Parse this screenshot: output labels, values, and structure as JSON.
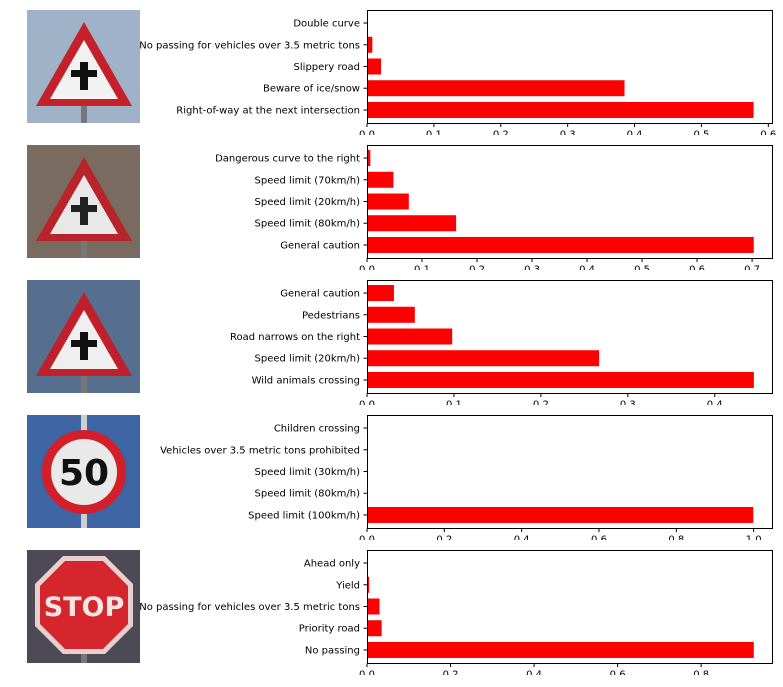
{
  "colors": {
    "bar": "#ff0000",
    "axis": "#000000"
  },
  "images": [
    {
      "sign": "warning-triangle-intersection",
      "thumb_colors": {
        "bg": "#9fb2c8",
        "border": "#c4212b",
        "inner": "#f2f2f2",
        "symbol": "#111111"
      }
    },
    {
      "sign": "warning-triangle-caution-cluster",
      "thumb_colors": {
        "bg": "#7a6b60",
        "border": "#b8242a",
        "inner": "#e8e8e8",
        "symbol": "#222222"
      }
    },
    {
      "sign": "warning-triangle-animals",
      "thumb_colors": {
        "bg": "#566f8e",
        "border": "#c0202b",
        "inner": "#efefef",
        "symbol": "#111111"
      }
    },
    {
      "sign": "speed-limit-50",
      "thumb_colors": {
        "bg": "#3d64a3",
        "border": "#d21f2a",
        "inner": "#e9e9e9",
        "symbol": "#111111"
      },
      "text": "50"
    },
    {
      "sign": "stop-octagon",
      "thumb_colors": {
        "bg": "#4e4a55",
        "border": "#e8d0d0",
        "inner": "#d5262d",
        "symbol": "#f5e6e6"
      },
      "text": "STOP"
    }
  ],
  "chart_data": [
    {
      "type": "bar",
      "orientation": "horizontal",
      "categories": [
        "Right-of-way at the next intersection",
        "Beware of ice/snow",
        "Slippery road",
        "No passing for vehicles over 3.5 metric tons",
        "Double curve"
      ],
      "values": [
        0.578,
        0.385,
        0.021,
        0.008,
        0.0008
      ],
      "xlim": [
        0,
        0.607
      ],
      "xticks": [
        0,
        0.1,
        0.2,
        0.3,
        0.4,
        0.5,
        0.6
      ],
      "xtick_labels": [
        "0.0",
        "0.1",
        "0.2",
        "0.3",
        "0.4",
        "0.5",
        "0.6"
      ],
      "grid": false
    },
    {
      "type": "bar",
      "orientation": "horizontal",
      "categories": [
        "General caution",
        "Speed limit (80km/h)",
        "Speed limit (20km/h)",
        "Speed limit (70km/h)",
        "Dangerous curve to the right"
      ],
      "values": [
        0.703,
        0.162,
        0.076,
        0.048,
        0.006
      ],
      "xlim": [
        0,
        0.738
      ],
      "xticks": [
        0,
        0.1,
        0.2,
        0.3,
        0.4,
        0.5,
        0.6,
        0.7
      ],
      "xtick_labels": [
        "0.0",
        "0.1",
        "0.2",
        "0.3",
        "0.4",
        "0.5",
        "0.6",
        "0.7"
      ],
      "grid": false
    },
    {
      "type": "bar",
      "orientation": "horizontal",
      "categories": [
        "Wild animals crossing",
        "Speed limit (20km/h)",
        "Road narrows on the right",
        "Pedestrians",
        "General caution"
      ],
      "values": [
        0.445,
        0.267,
        0.098,
        0.055,
        0.031
      ],
      "xlim": [
        0,
        0.467
      ],
      "xticks": [
        0,
        0.1,
        0.2,
        0.3,
        0.4
      ],
      "xtick_labels": [
        "0.0",
        "0.1",
        "0.2",
        "0.3",
        "0.4"
      ],
      "grid": false
    },
    {
      "type": "bar",
      "orientation": "horizontal",
      "categories": [
        "Speed limit (100km/h)",
        "Speed limit (80km/h)",
        "Speed limit (30km/h)",
        "Vehicles over 3.5 metric tons prohibited",
        "Children crossing"
      ],
      "values": [
        0.999,
        0.0005,
        0.0003,
        0.0002,
        0.0001
      ],
      "xlim": [
        0,
        1.05
      ],
      "xticks": [
        0,
        0.2,
        0.4,
        0.6,
        0.8,
        1.0
      ],
      "xtick_labels": [
        "0.0",
        "0.2",
        "0.4",
        "0.6",
        "0.8",
        "1.0"
      ],
      "grid": false
    },
    {
      "type": "bar",
      "orientation": "horizontal",
      "categories": [
        "No passing",
        "Priority road",
        "No passing for vehicles over 3.5 metric tons",
        "Yield",
        "Ahead only"
      ],
      "values": [
        0.926,
        0.035,
        0.03,
        0.005,
        0.0008
      ],
      "xlim": [
        0,
        0.972
      ],
      "xticks": [
        0,
        0.2,
        0.4,
        0.6,
        0.8
      ],
      "xtick_labels": [
        "0.0",
        "0.2",
        "0.4",
        "0.6",
        "0.8"
      ],
      "grid": false
    }
  ]
}
